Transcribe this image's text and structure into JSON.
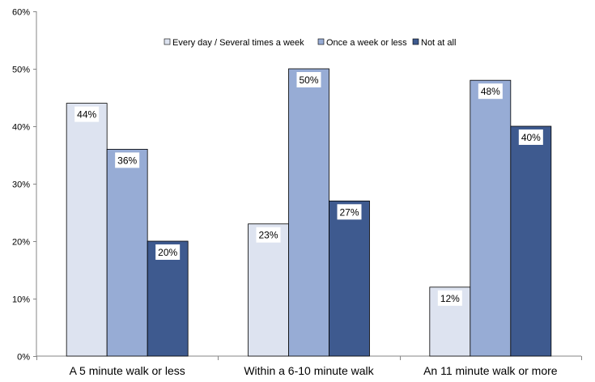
{
  "chart_data": {
    "type": "bar",
    "categories": [
      "A 5 minute walk or less",
      "Within a 6-10 minute walk",
      "An 11 minute walk or more"
    ],
    "series": [
      {
        "name": "Every day / Several times a week",
        "values": [
          44,
          23,
          12
        ],
        "color": "#dde3f0"
      },
      {
        "name": "Once a week or less",
        "values": [
          36,
          50,
          48
        ],
        "color": "#97acd5"
      },
      {
        "name": "Not at all",
        "values": [
          20,
          27,
          40
        ],
        "color": "#3e5a8f"
      }
    ],
    "data_labels": [
      [
        "44%",
        "23%",
        "12%"
      ],
      [
        "36%",
        "50%",
        "48%"
      ],
      [
        "20%",
        "27%",
        "40%"
      ]
    ],
    "y_ticks": [
      0,
      10,
      20,
      30,
      40,
      50,
      60
    ],
    "y_tick_labels": [
      "0%",
      "10%",
      "20%",
      "30%",
      "40%",
      "50%",
      "60%"
    ],
    "ylim": [
      0,
      60
    ],
    "grid": false,
    "legend_position": "top-right",
    "title": "",
    "xlabel": "",
    "ylabel": ""
  }
}
